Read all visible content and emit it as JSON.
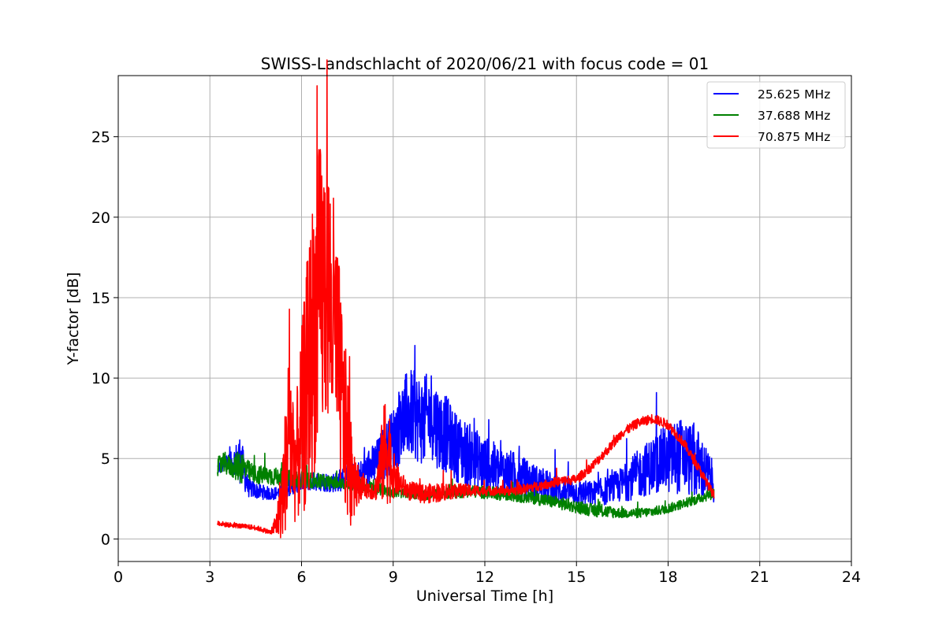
{
  "chart_data": {
    "type": "line",
    "title": "SWISS-Landschlacht of 2020/06/21 with focus code = 01",
    "xlabel": "Universal Time [h]",
    "ylabel": "Y-factor [dB]",
    "xlim": [
      0,
      24
    ],
    "ylim": [
      -1.4,
      28.8
    ],
    "xticks": [
      0,
      3,
      6,
      9,
      12,
      15,
      18,
      21,
      24
    ],
    "yticks": [
      0,
      5,
      10,
      15,
      20,
      25
    ],
    "grid": true,
    "legend_position": "top-right",
    "series": [
      {
        "name": "25.625 MHz",
        "color": "#0000ff",
        "x": [
          3.25,
          3.5,
          3.75,
          4.0,
          4.25,
          4.5,
          5.0,
          5.5,
          6.0,
          6.5,
          7.0,
          7.5,
          8.0,
          8.5,
          9.0,
          9.25,
          9.5,
          9.75,
          10.0,
          10.25,
          10.5,
          10.75,
          11.0,
          11.5,
          12.0,
          12.5,
          13.0,
          13.5,
          14.0,
          14.5,
          15.0,
          15.5,
          16.0,
          16.5,
          17.0,
          17.5,
          18.0,
          18.5,
          19.0,
          19.5
        ],
        "y": [
          4.4,
          4.6,
          4.8,
          5.0,
          3.2,
          3.0,
          2.8,
          3.0,
          3.5,
          3.6,
          3.5,
          3.8,
          4.0,
          4.8,
          6.2,
          7.2,
          7.8,
          7.6,
          7.3,
          7.8,
          6.8,
          6.5,
          5.8,
          5.2,
          4.6,
          4.2,
          4.0,
          3.6,
          3.3,
          3.0,
          2.9,
          2.8,
          3.0,
          3.4,
          4.0,
          4.6,
          5.0,
          5.2,
          4.6,
          3.5
        ],
        "amp": [
          0.4,
          0.5,
          0.7,
          1.6,
          0.6,
          0.5,
          0.4,
          0.4,
          0.5,
          0.6,
          0.6,
          0.8,
          1.0,
          1.5,
          2.0,
          2.6,
          2.8,
          2.8,
          2.8,
          2.8,
          2.6,
          2.4,
          2.2,
          2.0,
          1.8,
          1.6,
          1.4,
          1.2,
          1.0,
          0.9,
          0.8,
          0.8,
          0.9,
          1.1,
          1.5,
          1.8,
          2.2,
          2.4,
          2.2,
          1.2
        ]
      },
      {
        "name": "37.688 MHz",
        "color": "#008000",
        "x": [
          3.25,
          3.5,
          3.75,
          4.0,
          4.25,
          4.5,
          5.0,
          5.5,
          6.0,
          6.5,
          7.0,
          7.5,
          8.0,
          8.5,
          9.0,
          9.5,
          10.0,
          10.5,
          11.0,
          11.5,
          12.0,
          12.5,
          13.0,
          13.5,
          14.0,
          14.5,
          15.0,
          15.5,
          16.0,
          16.5,
          17.0,
          17.5,
          18.0,
          18.5,
          19.0,
          19.5
        ],
        "y": [
          4.5,
          4.7,
          4.4,
          4.6,
          4.2,
          4.0,
          3.9,
          3.8,
          3.7,
          3.6,
          3.5,
          3.4,
          3.3,
          3.1,
          2.9,
          2.8,
          2.7,
          2.8,
          2.9,
          3.0,
          2.9,
          2.8,
          2.7,
          2.6,
          2.4,
          2.2,
          2.0,
          1.8,
          1.7,
          1.6,
          1.6,
          1.7,
          1.9,
          2.2,
          2.5,
          2.9
        ],
        "amp": [
          0.6,
          0.7,
          0.6,
          1.2,
          0.7,
          0.6,
          0.6,
          0.5,
          0.5,
          0.5,
          0.4,
          0.4,
          0.4,
          0.4,
          0.3,
          0.3,
          0.3,
          0.3,
          0.4,
          0.4,
          0.4,
          0.4,
          0.4,
          0.4,
          0.4,
          0.4,
          0.4,
          0.4,
          0.4,
          0.3,
          0.3,
          0.3,
          0.3,
          0.3,
          0.3,
          0.4
        ]
      },
      {
        "name": "70.875 MHz",
        "color": "#ff0000",
        "x": [
          3.25,
          3.5,
          4.0,
          4.5,
          5.0,
          5.2,
          5.4,
          5.6,
          5.8,
          6.0,
          6.2,
          6.4,
          6.6,
          6.8,
          7.0,
          7.2,
          7.4,
          7.6,
          7.8,
          8.0,
          8.4,
          8.8,
          9.0,
          9.2,
          9.5,
          10.0,
          10.5,
          11.0,
          11.5,
          12.0,
          12.5,
          13.0,
          13.5,
          14.0,
          14.5,
          15.0,
          15.5,
          16.0,
          16.5,
          17.0,
          17.5,
          18.0,
          18.5,
          19.0,
          19.5
        ],
        "y": [
          1.0,
          0.9,
          0.8,
          0.7,
          0.4,
          1.0,
          3.0,
          7.0,
          4.5,
          7.0,
          10.0,
          13.0,
          15.0,
          16.0,
          14.0,
          11.0,
          7.0,
          5.0,
          3.5,
          3.2,
          3.0,
          6.0,
          4.0,
          3.5,
          3.0,
          2.8,
          2.9,
          3.0,
          3.0,
          3.0,
          3.0,
          3.0,
          3.2,
          3.4,
          3.6,
          3.7,
          4.5,
          5.5,
          6.6,
          7.2,
          7.5,
          7.1,
          6.0,
          4.4,
          2.7
        ],
        "amp": [
          0.15,
          0.15,
          0.15,
          0.15,
          0.15,
          1.0,
          3.0,
          6.0,
          3.5,
          6.0,
          8.0,
          9.0,
          10.0,
          9.0,
          8.5,
          7.0,
          5.5,
          4.5,
          1.5,
          0.6,
          0.6,
          4.0,
          1.5,
          0.8,
          0.6,
          0.6,
          0.6,
          0.5,
          0.4,
          0.3,
          0.3,
          0.3,
          0.3,
          0.3,
          0.3,
          0.3,
          0.3,
          0.3,
          0.3,
          0.3,
          0.3,
          0.3,
          0.3,
          0.3,
          0.3
        ]
      }
    ]
  }
}
